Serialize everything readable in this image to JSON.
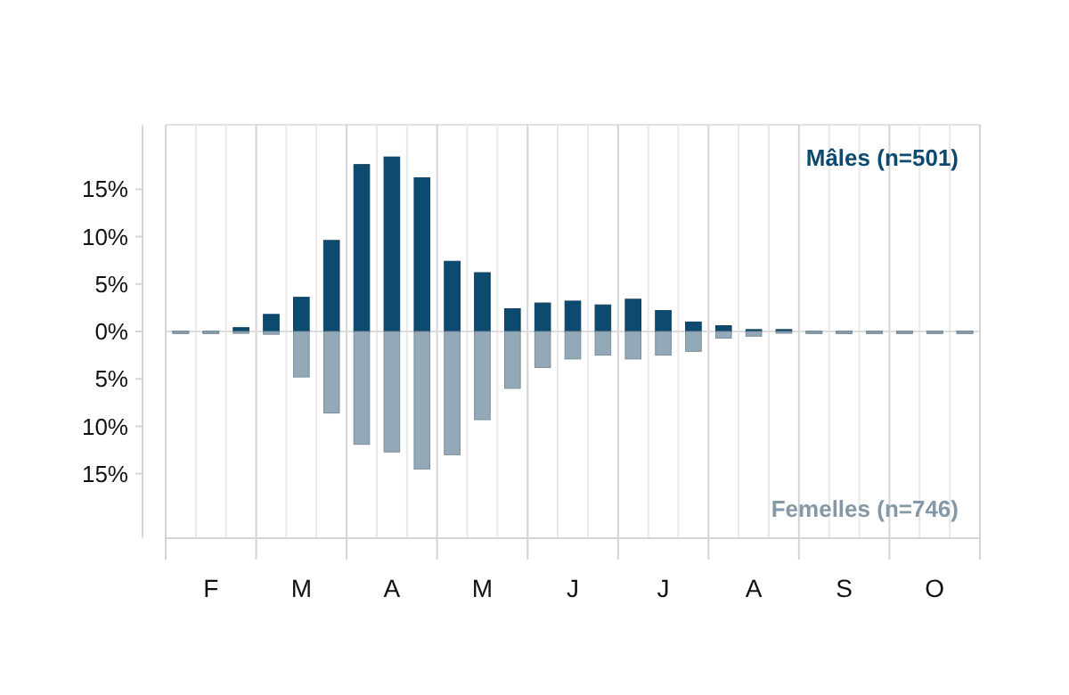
{
  "chart_data": {
    "type": "bar",
    "stacked": true,
    "categories": [
      null,
      "F",
      null,
      null,
      "M",
      null,
      null,
      "A",
      null,
      null,
      "M",
      null,
      null,
      "J",
      null,
      null,
      "J",
      null,
      null,
      "A",
      null,
      null,
      "S",
      null,
      null,
      "O",
      null
    ],
    "series": [
      {
        "name": "Mâles (n=501)",
        "color": "#0d4a70",
        "values": [
          0,
          0,
          0.4,
          1.8,
          3.6,
          9.6,
          17.6,
          18.4,
          16.2,
          7.4,
          6.2,
          2.4,
          3.0,
          3.2,
          2.8,
          3.4,
          2.2,
          1.0,
          0.6,
          0.2,
          0.2,
          0,
          0,
          0,
          0,
          0,
          0
        ]
      },
      {
        "name": "Femelles (n=746)",
        "color": "#94a9b8",
        "values": [
          -0.1,
          -0.1,
          -0.2,
          -0.3,
          -4.8,
          -8.6,
          -11.9,
          -12.7,
          -14.5,
          -13.0,
          -9.3,
          -6.0,
          -3.8,
          -2.9,
          -2.5,
          -2.9,
          -2.5,
          -2.1,
          -0.7,
          -0.5,
          -0.1,
          -0.1,
          -0.1,
          -0.1,
          -0.1,
          -0.1,
          -0.1
        ]
      }
    ],
    "ylim": [
      -21.8,
      21.8
    ],
    "yticks": [
      {
        "value": 15,
        "label": "15%"
      },
      {
        "value": 10,
        "label": "10%"
      },
      {
        "value": 5,
        "label": "5%"
      },
      {
        "value": 0,
        "label": "0%"
      },
      {
        "value": -5,
        "label": "5%"
      },
      {
        "value": -10,
        "label": "10%"
      },
      {
        "value": -15,
        "label": "15%"
      }
    ],
    "grid": "x",
    "legend": "right"
  }
}
